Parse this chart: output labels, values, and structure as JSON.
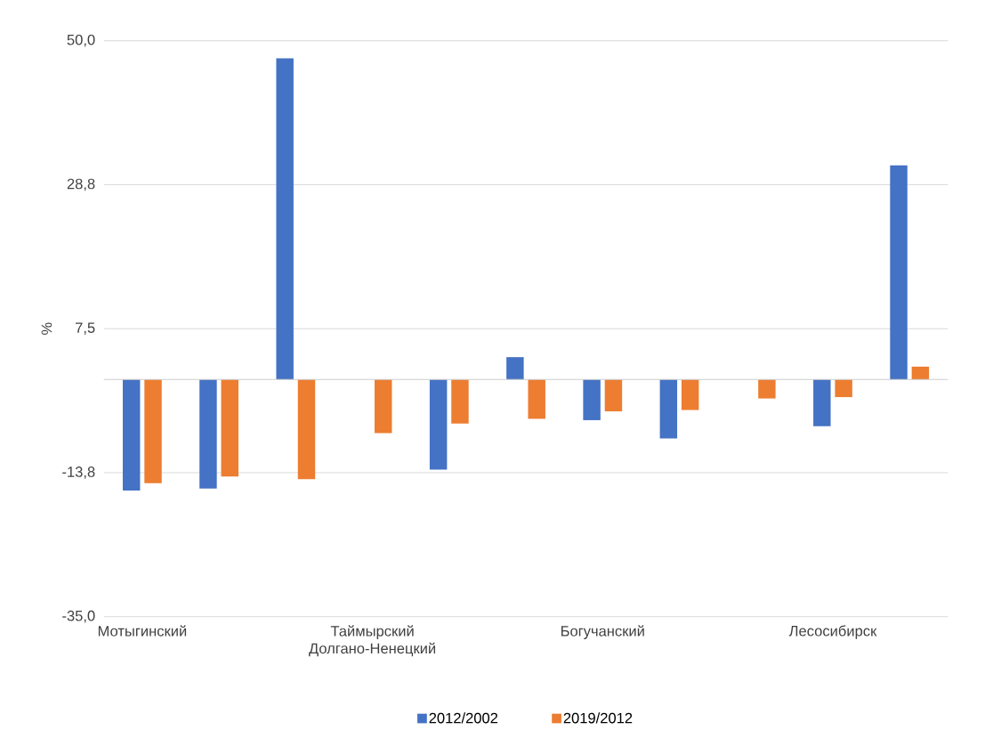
{
  "chart_data": {
    "type": "bar",
    "ylabel": "%",
    "categories": [
      "Мотыгинский",
      null,
      null,
      "Таймырский Долгано-Ненецкий",
      null,
      null,
      "Богучанский",
      null,
      null,
      "Лесосибирск",
      null
    ],
    "series": [
      {
        "name": "2012/2002",
        "color": "#4472c4",
        "values": [
          -16.4,
          -16.1,
          47.4,
          null,
          -13.3,
          3.3,
          -6.0,
          -8.7,
          null,
          -6.9,
          31.6
        ]
      },
      {
        "name": "2019/2012",
        "color": "#ed7d31",
        "values": [
          -15.3,
          -14.3,
          -14.7,
          -7.9,
          -6.5,
          -5.8,
          -4.7,
          -4.5,
          -2.8,
          -2.6,
          1.9
        ]
      }
    ],
    "ylim": [
      -35,
      50
    ],
    "yticks": [
      {
        "value": -35,
        "label": "-35,0"
      },
      {
        "value": -13.75,
        "label": "-13,8"
      },
      {
        "value": 7.5,
        "label": "7,5"
      },
      {
        "value": 28.75,
        "label": "28,8"
      },
      {
        "value": 50,
        "label": "50,0"
      }
    ],
    "grid": "y",
    "legend": "bottom"
  }
}
